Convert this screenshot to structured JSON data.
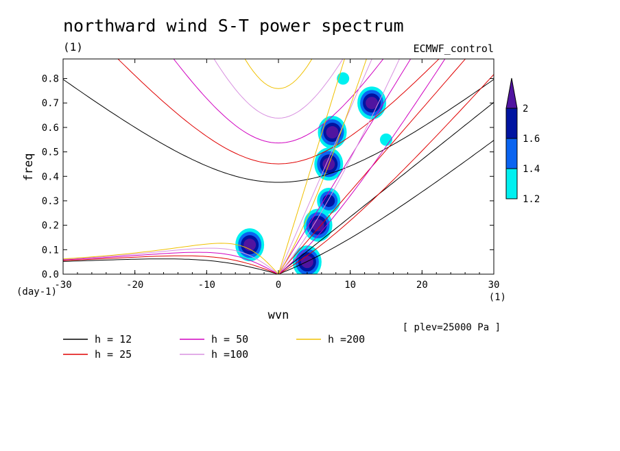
{
  "chart_data": {
    "type": "heatmap",
    "title": "northward wind S-T power spectrum",
    "subtitle_left": "(1)",
    "subtitle_right": "ECMWF_control",
    "xlabel": "wvn",
    "ylabel": "freq",
    "x_units": "(1)",
    "y_units": "(day-1)",
    "xlim": [
      -30,
      30
    ],
    "ylim": [
      0,
      0.88
    ],
    "x_ticks": [
      -30,
      -20,
      -10,
      0,
      10,
      20,
      30
    ],
    "y_ticks": [
      0.0,
      0.1,
      0.2,
      0.3,
      0.4,
      0.5,
      0.6,
      0.7,
      0.8
    ],
    "annotation": "[ plev=25000 Pa ]",
    "colorbar": {
      "levels": [
        1.2,
        1.4,
        1.6,
        2
      ],
      "colors": [
        "#00f0f0",
        "#0a64f0",
        "#0014a0",
        "#5014a0"
      ]
    },
    "dispersion_curves": [
      {
        "label": "h = 12",
        "h": 12,
        "color": "#000000"
      },
      {
        "label": "h = 25",
        "h": 25,
        "color": "#e00000"
      },
      {
        "label": "h = 50",
        "h": 50,
        "color": "#d000c0"
      },
      {
        "label": "h =100",
        "h": 100,
        "color": "#d890e0"
      },
      {
        "label": "h =200",
        "h": 200,
        "color": "#f0c000"
      }
    ],
    "contour_regions": [
      {
        "x": 7,
        "y": 0.45,
        "level": 2
      },
      {
        "x": 7.5,
        "y": 0.58,
        "level": 2
      },
      {
        "x": 5.5,
        "y": 0.2,
        "level": 2
      },
      {
        "x": 4,
        "y": 0.05,
        "level": 2
      },
      {
        "x": 13,
        "y": 0.7,
        "level": 2
      },
      {
        "x": -4,
        "y": 0.12,
        "level": 2
      },
      {
        "x": 7,
        "y": 0.3,
        "level": 1.6
      },
      {
        "x": 9,
        "y": 0.8,
        "level": 1.2
      },
      {
        "x": 15,
        "y": 0.55,
        "level": 1.2
      }
    ]
  }
}
